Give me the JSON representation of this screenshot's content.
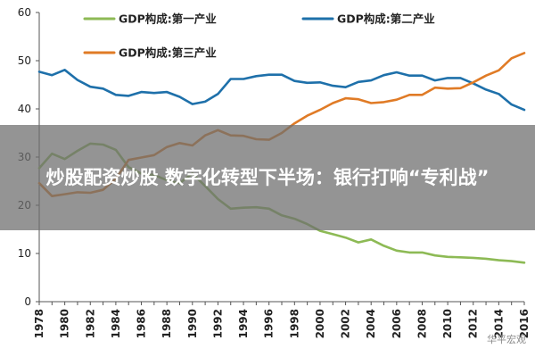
{
  "chart_data": {
    "type": "line",
    "x": [
      1978,
      1979,
      1980,
      1981,
      1982,
      1983,
      1984,
      1985,
      1986,
      1987,
      1988,
      1989,
      1990,
      1991,
      1992,
      1993,
      1994,
      1995,
      1996,
      1997,
      1998,
      1999,
      2000,
      2001,
      2002,
      2003,
      2004,
      2005,
      2006,
      2007,
      2008,
      2009,
      2010,
      2011,
      2012,
      2013,
      2014,
      2015,
      2016
    ],
    "x_ticks": [
      1978,
      1980,
      1982,
      1984,
      1986,
      1988,
      1990,
      1992,
      1994,
      1996,
      1998,
      2000,
      2002,
      2004,
      2006,
      2008,
      2010,
      2012,
      2014,
      2016
    ],
    "y_ticks": [
      0,
      10,
      20,
      30,
      40,
      50,
      60
    ],
    "ylim": [
      0,
      60
    ],
    "xlim": [
      1978,
      2016
    ],
    "grid": false,
    "legend_position": "top",
    "series": [
      {
        "name": "GDP构成:第一产业",
        "color": "#8DBA55",
        "values": [
          27.7,
          30.7,
          29.6,
          31.3,
          32.8,
          32.6,
          31.5,
          27.9,
          26.6,
          26.3,
          25.2,
          24.6,
          26.6,
          24.0,
          21.3,
          19.3,
          19.5,
          19.6,
          19.3,
          17.9,
          17.2,
          16.1,
          14.7,
          14.0,
          13.3,
          12.3,
          12.9,
          11.6,
          10.6,
          10.2,
          10.2,
          9.6,
          9.3,
          9.2,
          9.1,
          8.9,
          8.6,
          8.4,
          8.1
        ]
      },
      {
        "name": "GDP构成:第二产业",
        "color": "#1E70AA",
        "values": [
          47.7,
          47.0,
          48.1,
          46.0,
          44.6,
          44.2,
          42.9,
          42.7,
          43.5,
          43.3,
          43.5,
          42.5,
          41.0,
          41.5,
          43.1,
          46.2,
          46.2,
          46.8,
          47.1,
          47.1,
          45.8,
          45.4,
          45.5,
          44.8,
          44.5,
          45.6,
          45.9,
          47.0,
          47.6,
          46.9,
          46.9,
          45.9,
          46.4,
          46.4,
          45.3,
          44.0,
          43.1,
          40.9,
          39.8
        ]
      },
      {
        "name": "GDP构成:第三产业",
        "color": "#E07B26",
        "values": [
          24.6,
          21.9,
          22.3,
          22.7,
          22.6,
          23.2,
          25.5,
          29.4,
          29.9,
          30.4,
          32.1,
          32.9,
          32.4,
          34.5,
          35.6,
          34.5,
          34.4,
          33.7,
          33.6,
          35.0,
          37.0,
          38.6,
          39.8,
          41.2,
          42.2,
          42.0,
          41.2,
          41.4,
          41.9,
          42.9,
          42.9,
          44.4,
          44.2,
          44.3,
          45.5,
          46.9,
          48.0,
          50.5,
          51.6
        ]
      }
    ]
  },
  "overlay": {
    "title": "炒股配资炒股 数字化转型下半场：银行打响“专利战”"
  },
  "watermark": {
    "text": "华平宏观"
  }
}
